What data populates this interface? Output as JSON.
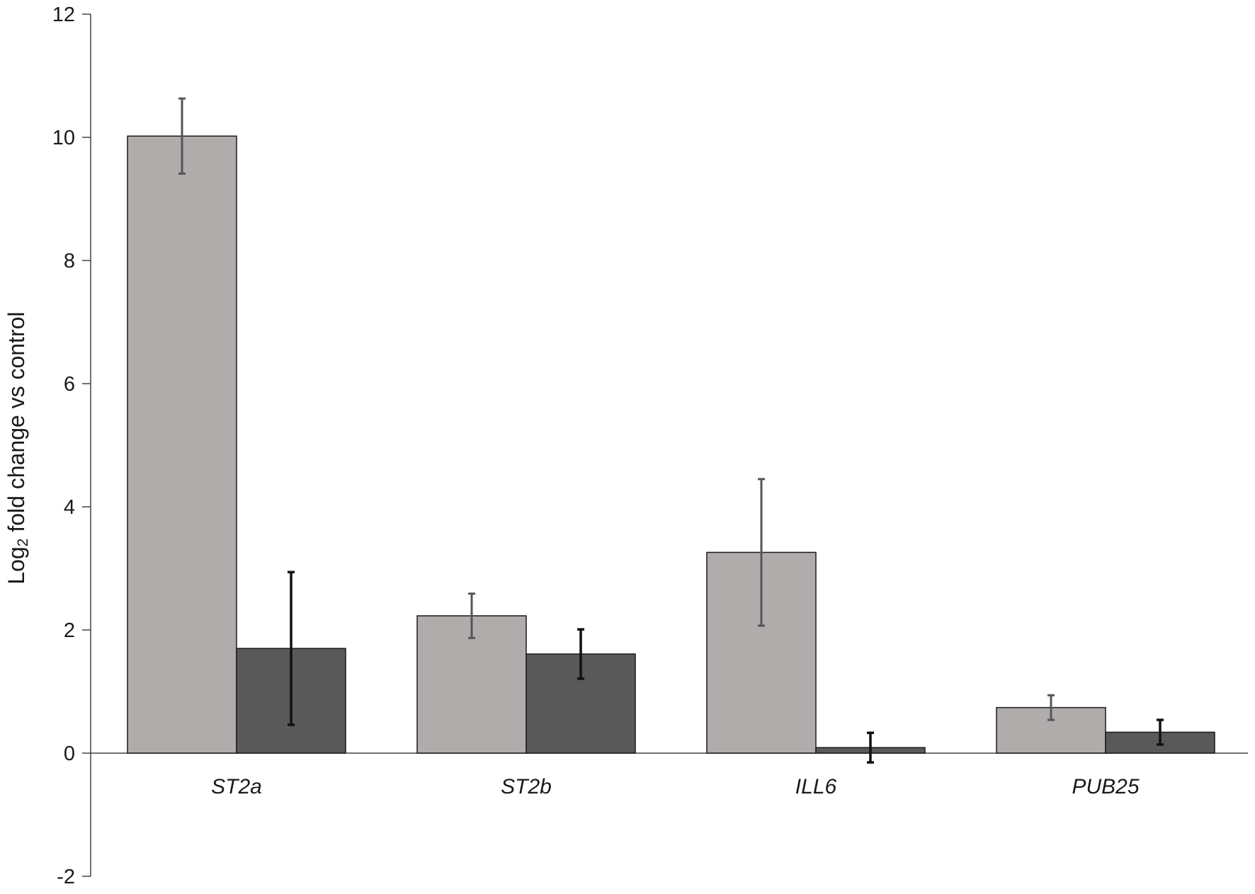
{
  "chart_data": {
    "type": "bar",
    "title": "",
    "xlabel": "",
    "ylabel": {
      "main": "Log",
      "subscript": "2",
      "rest": " fold change vs  control"
    },
    "ylim": [
      -2,
      12
    ],
    "yticks": [
      -2,
      0,
      2,
      4,
      6,
      8,
      10,
      12
    ],
    "ytick_labels": [
      "-2",
      "0",
      "2",
      "4",
      "6",
      "8",
      "10",
      "12"
    ],
    "categories": [
      "ST2a",
      "ST2b",
      "ILL6",
      "PUB25"
    ],
    "category_style": "italic",
    "legend": "none",
    "grid": false,
    "series": [
      {
        "color": "#b0acab",
        "error_color": "#555555",
        "values": [
          10.02,
          2.23,
          3.26,
          0.74
        ],
        "errors": [
          0.61,
          0.36,
          1.19,
          0.2
        ]
      },
      {
        "color": "#595959",
        "error_color": "#111111",
        "values": [
          1.7,
          1.61,
          0.09,
          0.34
        ],
        "errors": [
          1.24,
          0.4,
          0.24,
          0.2
        ]
      }
    ]
  }
}
